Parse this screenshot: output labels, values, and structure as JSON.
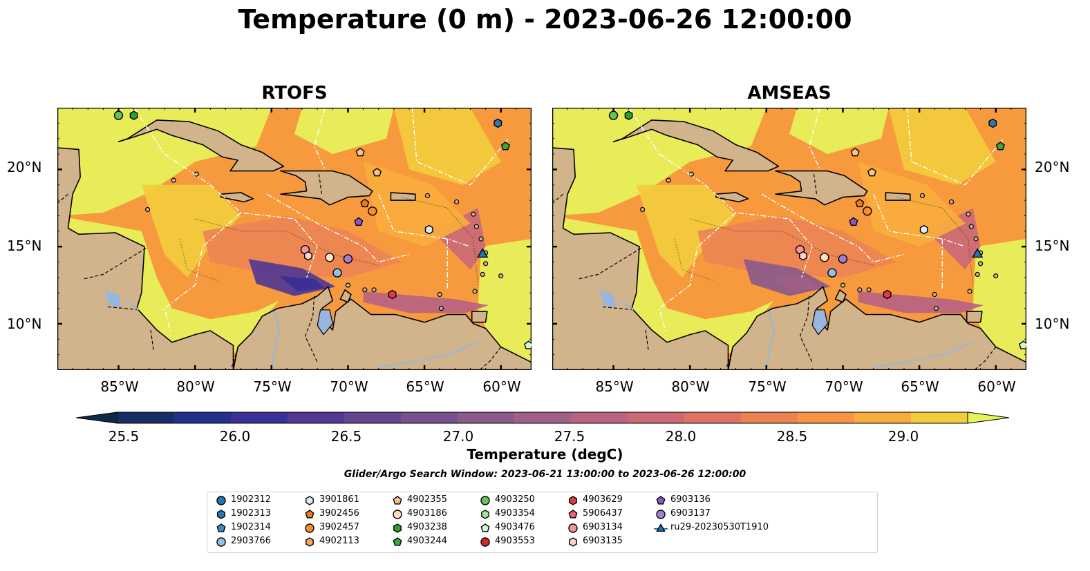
{
  "title": "Temperature (0 m) - 2023-06-26 12:00:00",
  "panels": [
    {
      "title": "RTOFS"
    },
    {
      "title": "AMSEAS"
    }
  ],
  "lat_ticks": [
    "20°N",
    "15°N",
    "10°N"
  ],
  "lon_ticks": [
    "85°W",
    "80°W",
    "75°W",
    "70°W",
    "65°W",
    "60°W"
  ],
  "map_extent": {
    "lon": [
      -89,
      -58
    ],
    "lat": [
      7,
      24
    ]
  },
  "colorbar": {
    "label": "Temperature (degC)",
    "ticks": [
      "25.5",
      "26.0",
      "26.5",
      "27.0",
      "27.5",
      "28.0",
      "28.5",
      "29.0"
    ],
    "levels": [
      25.5,
      25.75,
      26.0,
      26.25,
      26.5,
      26.75,
      27.0,
      27.25,
      27.5,
      27.75,
      28.0,
      28.25,
      28.5,
      28.75,
      29.0,
      29.25
    ],
    "colors": [
      "#0e2a44",
      "#152f66",
      "#232f8a",
      "#3a2f96",
      "#513893",
      "#654490",
      "#77518e",
      "#8b5a8a",
      "#a16087",
      "#b76382",
      "#cb6a74",
      "#df7363",
      "#ec8451",
      "#f69543",
      "#f9ad3c",
      "#f3cc3c",
      "#e6f35a"
    ],
    "extend": "both"
  },
  "search_window": "Glider/Argo Search Window: 2023-06-21 13:00:00 to 2023-06-26 12:00:00",
  "legend": [
    {
      "label": "1902312",
      "marker": "circle",
      "color": "#1f77b4"
    },
    {
      "label": "1902313",
      "marker": "hexagon",
      "color": "#2b78b8"
    },
    {
      "label": "1902314",
      "marker": "pentagon",
      "color": "#3d8ac4"
    },
    {
      "label": "2903766",
      "marker": "circle",
      "color": "#8fc2ea"
    },
    {
      "label": "3901861",
      "marker": "hexagon",
      "color": "#dcebf7"
    },
    {
      "label": "3902456",
      "marker": "pentagon",
      "color": "#ee7a21"
    },
    {
      "label": "3902457",
      "marker": "circle",
      "color": "#f98d2b"
    },
    {
      "label": "4902113",
      "marker": "hexagon",
      "color": "#fba35c"
    },
    {
      "label": "4902355",
      "marker": "pentagon",
      "color": "#fcc189"
    },
    {
      "label": "4903186",
      "marker": "circle",
      "color": "#fde0c0"
    },
    {
      "label": "4903238",
      "marker": "hexagon",
      "color": "#2ba02b"
    },
    {
      "label": "4903244",
      "marker": "pentagon",
      "color": "#3aa83a"
    },
    {
      "label": "4903250",
      "marker": "circle",
      "color": "#63c45e"
    },
    {
      "label": "4903354",
      "marker": "hexagon",
      "color": "#9ee29a"
    },
    {
      "label": "4903476",
      "marker": "pentagon",
      "color": "#d4f5d2"
    },
    {
      "label": "4903553",
      "marker": "circle",
      "color": "#d62728"
    },
    {
      "label": "4903629",
      "marker": "hexagon",
      "color": "#e03c41"
    },
    {
      "label": "5906437",
      "marker": "pentagon",
      "color": "#e9646b"
    },
    {
      "label": "6903134",
      "marker": "circle",
      "color": "#f4959a"
    },
    {
      "label": "6903135",
      "marker": "hexagon",
      "color": "#fbd0d2"
    },
    {
      "label": "6903136",
      "marker": "pentagon",
      "color": "#8b56c5"
    },
    {
      "label": "6903137",
      "marker": "circle",
      "color": "#a47fd0"
    },
    {
      "label": "ru29-20230530T1910",
      "marker": "triangle-line",
      "color": "#1f77b4"
    }
  ],
  "floats": [
    {
      "id": "4903250",
      "lon": -85.0,
      "lat": 23.5
    },
    {
      "id": "4903238",
      "lon": -84.0,
      "lat": 23.5
    },
    {
      "id": "1902313",
      "lon": -60.2,
      "lat": 23.0
    },
    {
      "id": "4903244",
      "lon": -59.7,
      "lat": 21.5
    },
    {
      "id": "4902355",
      "lon": -69.2,
      "lat": 21.1
    },
    {
      "id": "4902355",
      "lon": -68.1,
      "lat": 19.8
    },
    {
      "id": "3902456",
      "lon": -68.9,
      "lat": 17.8
    },
    {
      "id": "3902457",
      "lon": -68.4,
      "lat": 17.3
    },
    {
      "id": "6903136",
      "lon": -69.3,
      "lat": 16.6
    },
    {
      "id": "3901861",
      "lon": -64.7,
      "lat": 16.1
    },
    {
      "id": "ru29-20230530T1910",
      "lon": -61.2,
      "lat": 14.5
    },
    {
      "id": "6903134",
      "lon": -72.8,
      "lat": 14.8
    },
    {
      "id": "6903135",
      "lon": -72.6,
      "lat": 14.4
    },
    {
      "id": "4903186",
      "lon": -71.2,
      "lat": 14.3
    },
    {
      "id": "6903137",
      "lon": -70.0,
      "lat": 14.2
    },
    {
      "id": "2903766",
      "lon": -70.7,
      "lat": 13.3
    },
    {
      "id": "4903629",
      "lon": -67.1,
      "lat": 11.9
    },
    {
      "id": "4903476",
      "lon": -58.2,
      "lat": 8.6
    }
  ]
}
